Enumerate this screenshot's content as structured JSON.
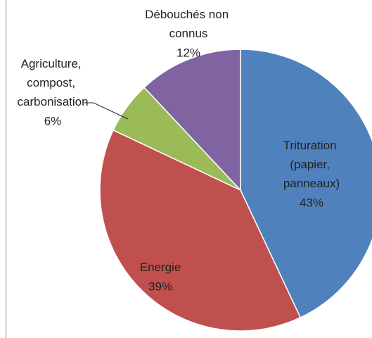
{
  "chart_data": {
    "type": "pie",
    "categories": [
      "Trituration (papier, panneaux)",
      "Energie",
      "Agriculture, compost, carbonisation",
      "Débouchés non connus"
    ],
    "values": [
      43,
      39,
      6,
      12
    ],
    "value_labels": [
      "43%",
      "39%",
      "6%",
      "12%"
    ],
    "colors": [
      "#4f81bd",
      "#c0504d",
      "#9bbb59",
      "#8064a2"
    ]
  }
}
